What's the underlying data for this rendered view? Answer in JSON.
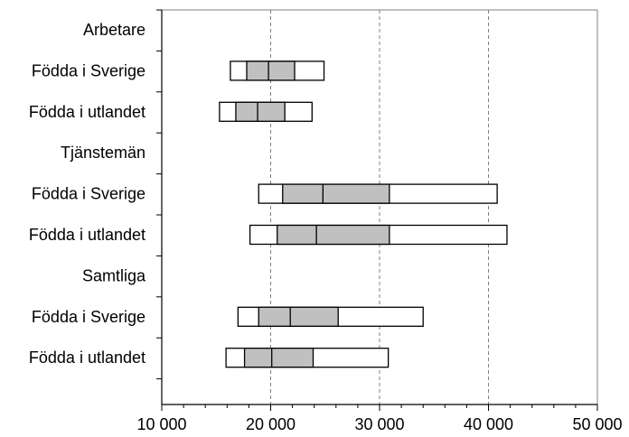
{
  "chart_data": {
    "type": "boxplot",
    "orientation": "horizontal",
    "title": "",
    "xlabel": "",
    "ylabel": "",
    "xlim": [
      10000,
      50000
    ],
    "x_ticks": [
      10000,
      20000,
      30000,
      40000,
      50000
    ],
    "x_tick_labels": [
      "10 000",
      "20 000",
      "30 000",
      "40 000",
      "50 000"
    ],
    "grid": "vertical dashed",
    "colors": {
      "outer": "#ffffff",
      "inner": "#c0c0c0",
      "stroke": "#000000",
      "grid": "#808080"
    },
    "rows": [
      {
        "label": "Arbetare",
        "group_header": true
      },
      {
        "label": "Födda i Sverige",
        "p10": 16300,
        "p25": 17800,
        "median": 19800,
        "p75": 22200,
        "p90": 24900
      },
      {
        "label": "Födda i utlandet",
        "p10": 15300,
        "p25": 16800,
        "median": 18800,
        "p75": 21300,
        "p90": 23800
      },
      {
        "label": "Tjänstemän",
        "group_header": true
      },
      {
        "label": "Födda i Sverige",
        "p10": 18900,
        "p25": 21100,
        "median": 24800,
        "p75": 30900,
        "p90": 40800
      },
      {
        "label": "Födda i utlandet",
        "p10": 18100,
        "p25": 20600,
        "median": 24200,
        "p75": 30900,
        "p90": 41700
      },
      {
        "label": "Samtliga",
        "group_header": true
      },
      {
        "label": "Födda i Sverige",
        "p10": 17000,
        "p25": 18900,
        "median": 21800,
        "p75": 26200,
        "p90": 34000
      },
      {
        "label": "Födda i utlandet",
        "p10": 15900,
        "p25": 17600,
        "median": 20100,
        "p75": 23900,
        "p90": 30800
      }
    ]
  }
}
